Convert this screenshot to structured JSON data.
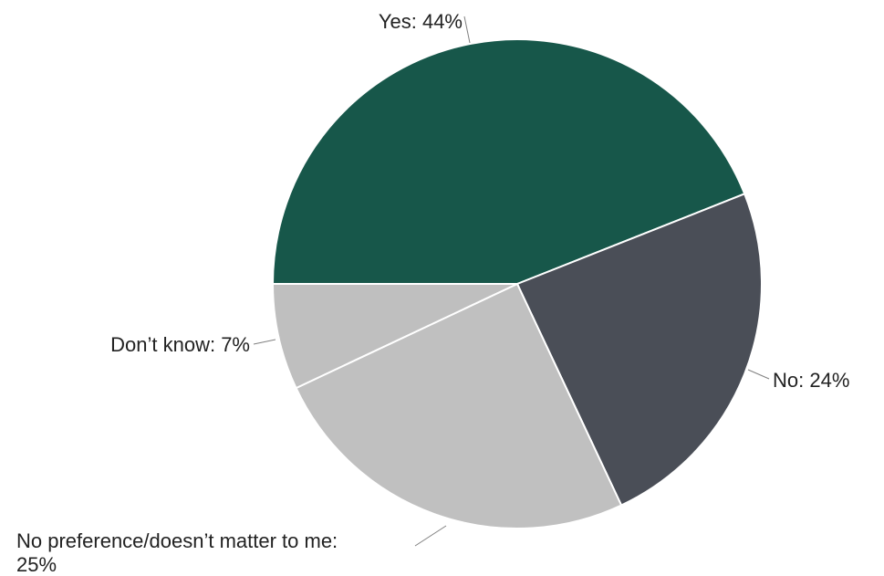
{
  "chart_data": {
    "type": "pie",
    "start_angle_deg": 180,
    "direction": "clockwise",
    "slices": [
      {
        "key": "yes",
        "label": "Yes: 44%",
        "value": 44,
        "color": "#17574a"
      },
      {
        "key": "no",
        "label": "No: 24%",
        "value": 24,
        "color": "#4a4e57"
      },
      {
        "key": "no-preference",
        "label": "No preference/doesn’t matter to me:",
        "label_line2": "25%",
        "value": 25,
        "color": "#c0c0c0"
      },
      {
        "key": "dont-know",
        "label": "Don’t know: 7%",
        "value": 7,
        "color": "#bfbfbf"
      }
    ]
  }
}
